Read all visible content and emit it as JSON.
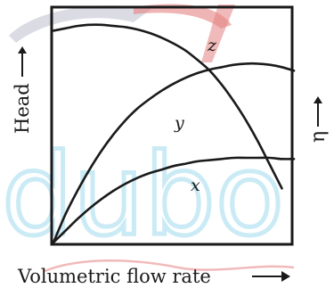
{
  "chart_data": {
    "type": "line",
    "xlabel": "Volumetric flow rate",
    "ylabel": "Head",
    "y2label": "η",
    "xlim": [
      0,
      1
    ],
    "ylim": [
      0,
      1
    ],
    "grid": false,
    "legend": "none",
    "series": [
      {
        "name": "z",
        "x": [
          0,
          0.05,
          0.1,
          0.15,
          0.2,
          0.25,
          0.3,
          0.35,
          0.4,
          0.45,
          0.5,
          0.55,
          0.6,
          0.65,
          0.7,
          0.75,
          0.8,
          0.85,
          0.9,
          0.95
        ],
        "y": [
          0.9,
          0.91,
          0.92,
          0.925,
          0.925,
          0.92,
          0.915,
          0.905,
          0.89,
          0.87,
          0.845,
          0.815,
          0.775,
          0.73,
          0.67,
          0.6,
          0.52,
          0.43,
          0.33,
          0.23
        ]
      },
      {
        "name": "y",
        "x": [
          0,
          0.05,
          0.1,
          0.15,
          0.2,
          0.25,
          0.3,
          0.35,
          0.4,
          0.45,
          0.5,
          0.55,
          0.6,
          0.65,
          0.7,
          0.75,
          0.8,
          0.85,
          0.9,
          0.95,
          1.0
        ],
        "y": [
          0.0,
          0.12,
          0.22,
          0.31,
          0.39,
          0.46,
          0.52,
          0.57,
          0.61,
          0.645,
          0.675,
          0.7,
          0.72,
          0.735,
          0.745,
          0.755,
          0.76,
          0.76,
          0.755,
          0.745,
          0.73
        ]
      },
      {
        "name": "x",
        "x": [
          0,
          0.05,
          0.1,
          0.15,
          0.2,
          0.25,
          0.3,
          0.35,
          0.4,
          0.45,
          0.5,
          0.55,
          0.6,
          0.65,
          0.7,
          0.75,
          0.8,
          0.85,
          0.9,
          0.95,
          1.0
        ],
        "y": [
          0.0,
          0.05,
          0.1,
          0.145,
          0.185,
          0.22,
          0.25,
          0.275,
          0.295,
          0.31,
          0.325,
          0.335,
          0.345,
          0.35,
          0.355,
          0.36,
          0.36,
          0.36,
          0.36,
          0.355,
          0.355
        ]
      }
    ],
    "labels": [
      {
        "text": "z",
        "series": "z"
      },
      {
        "text": "y",
        "series": "y"
      },
      {
        "text": "x",
        "series": "x"
      }
    ],
    "colors": {
      "axis": "#1a1a1a",
      "curve": "#1a1a1a",
      "watermark_blue": "#8fd3ea",
      "watermark_red": "#e06b6b",
      "watermark_gray": "#b7b7c9"
    }
  }
}
